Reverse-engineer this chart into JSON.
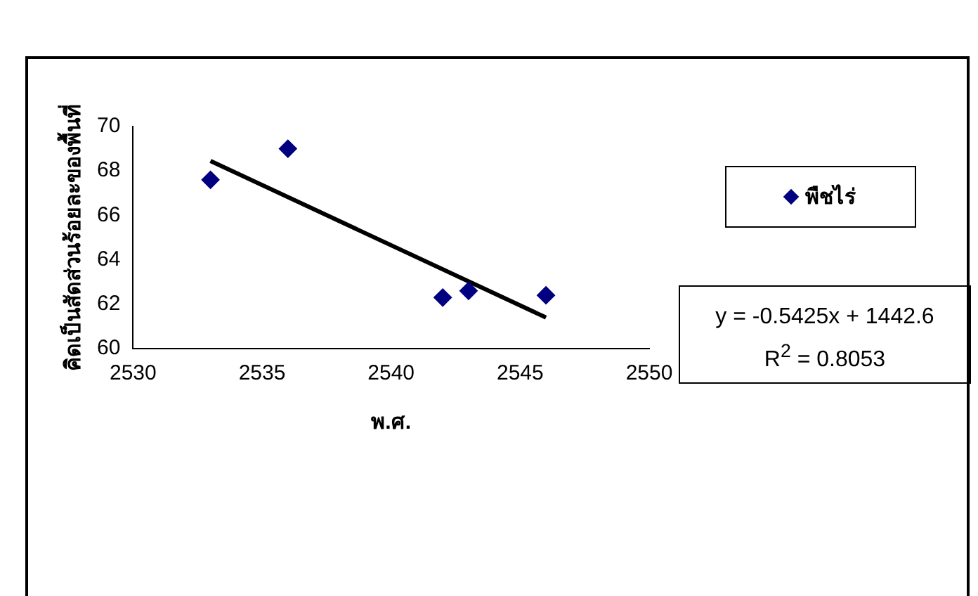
{
  "chart_data": {
    "type": "scatter",
    "xlabel": "พ.ศ.",
    "ylabel": "คิดเป็นสัดส่วนร้อยละของพื้นที่",
    "x": [
      2533,
      2536,
      2542,
      2543,
      2546
    ],
    "series": [
      {
        "name": "พืชไร่",
        "color": "#000080",
        "values": [
          67.6,
          69.0,
          62.3,
          62.6,
          62.4
        ],
        "marker": "diamond"
      },
      {
        "type": "line",
        "color": "#000000",
        "x": [
          2533,
          2546
        ],
        "values": [
          68.45,
          61.4
        ],
        "marker": "none"
      }
    ],
    "xlim": [
      2530,
      2550
    ],
    "xticks": [
      2530,
      2535,
      2540,
      2545,
      2550
    ],
    "ylim": [
      60,
      70
    ],
    "yticks": [
      60,
      62,
      64,
      66,
      68,
      70
    ],
    "grid": false,
    "legend": "right",
    "annotations": [
      "y = -0.5425x + 1442.6\nR$^{2}$ = 0.8053"
    ]
  }
}
